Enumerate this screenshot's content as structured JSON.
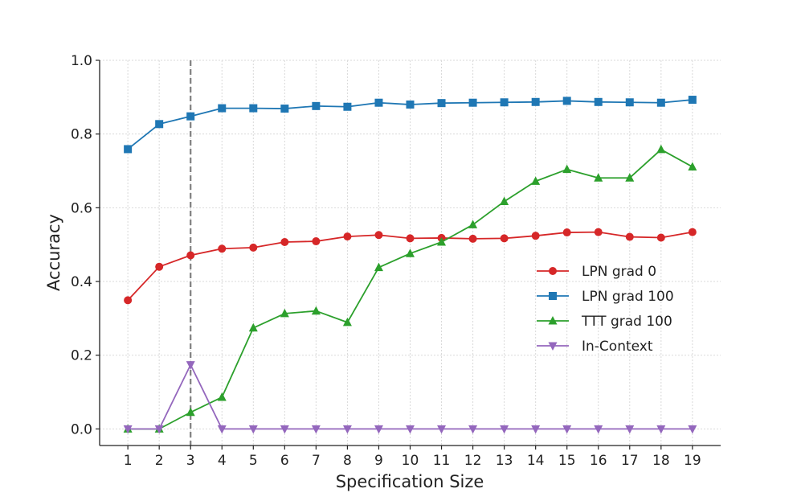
{
  "chart_data": {
    "type": "line",
    "title": "",
    "xlabel": "Specification Size",
    "ylabel": "Accuracy",
    "x": [
      1,
      2,
      3,
      4,
      5,
      6,
      7,
      8,
      9,
      10,
      11,
      12,
      13,
      14,
      15,
      16,
      17,
      18,
      19
    ],
    "xlim": [
      0.1,
      19.9
    ],
    "ylim": [
      -0.045,
      1.0
    ],
    "yticks": [
      0.0,
      0.2,
      0.4,
      0.6,
      0.8,
      1.0
    ],
    "ytick_labels": [
      "0.0",
      "0.2",
      "0.4",
      "0.6",
      "0.8",
      "1.0"
    ],
    "xtick_labels": [
      "1",
      "2",
      "3",
      "4",
      "5",
      "6",
      "7",
      "8",
      "9",
      "10",
      "11",
      "12",
      "13",
      "14",
      "15",
      "16",
      "17",
      "18",
      "19"
    ],
    "grid": true,
    "legend_position": "center-right",
    "reference_line": {
      "x": 3,
      "style": "dashed",
      "color": "#7f7f7f"
    },
    "series": [
      {
        "name": "LPN grad 0",
        "color": "#d62728",
        "marker": "circle",
        "values": [
          0.349,
          0.44,
          0.471,
          0.489,
          0.492,
          0.507,
          0.509,
          0.522,
          0.526,
          0.517,
          0.518,
          0.516,
          0.517,
          0.524,
          0.533,
          0.534,
          0.521,
          0.519,
          0.534
        ]
      },
      {
        "name": "LPN grad 100",
        "color": "#1f77b4",
        "marker": "square",
        "values": [
          0.759,
          0.827,
          0.848,
          0.87,
          0.87,
          0.869,
          0.876,
          0.874,
          0.885,
          0.88,
          0.884,
          0.885,
          0.886,
          0.887,
          0.89,
          0.887,
          0.886,
          0.885,
          0.893
        ]
      },
      {
        "name": "TTT grad 100",
        "color": "#2ca02c",
        "marker": "triangle-up",
        "values": [
          0.0,
          0.0,
          0.045,
          0.086,
          0.274,
          0.313,
          0.32,
          0.289,
          0.438,
          0.476,
          0.507,
          0.554,
          0.617,
          0.672,
          0.704,
          0.681,
          0.681,
          0.758,
          0.711
        ]
      },
      {
        "name": "In-Context",
        "color": "#9467bd",
        "marker": "triangle-down",
        "values": [
          0.0,
          0.0,
          0.174,
          0.0,
          0.0,
          0.0,
          0.0,
          0.0,
          0.0,
          0.0,
          0.0,
          0.0,
          0.0,
          0.0,
          0.0,
          0.0,
          0.0,
          0.0,
          0.0
        ]
      }
    ]
  }
}
